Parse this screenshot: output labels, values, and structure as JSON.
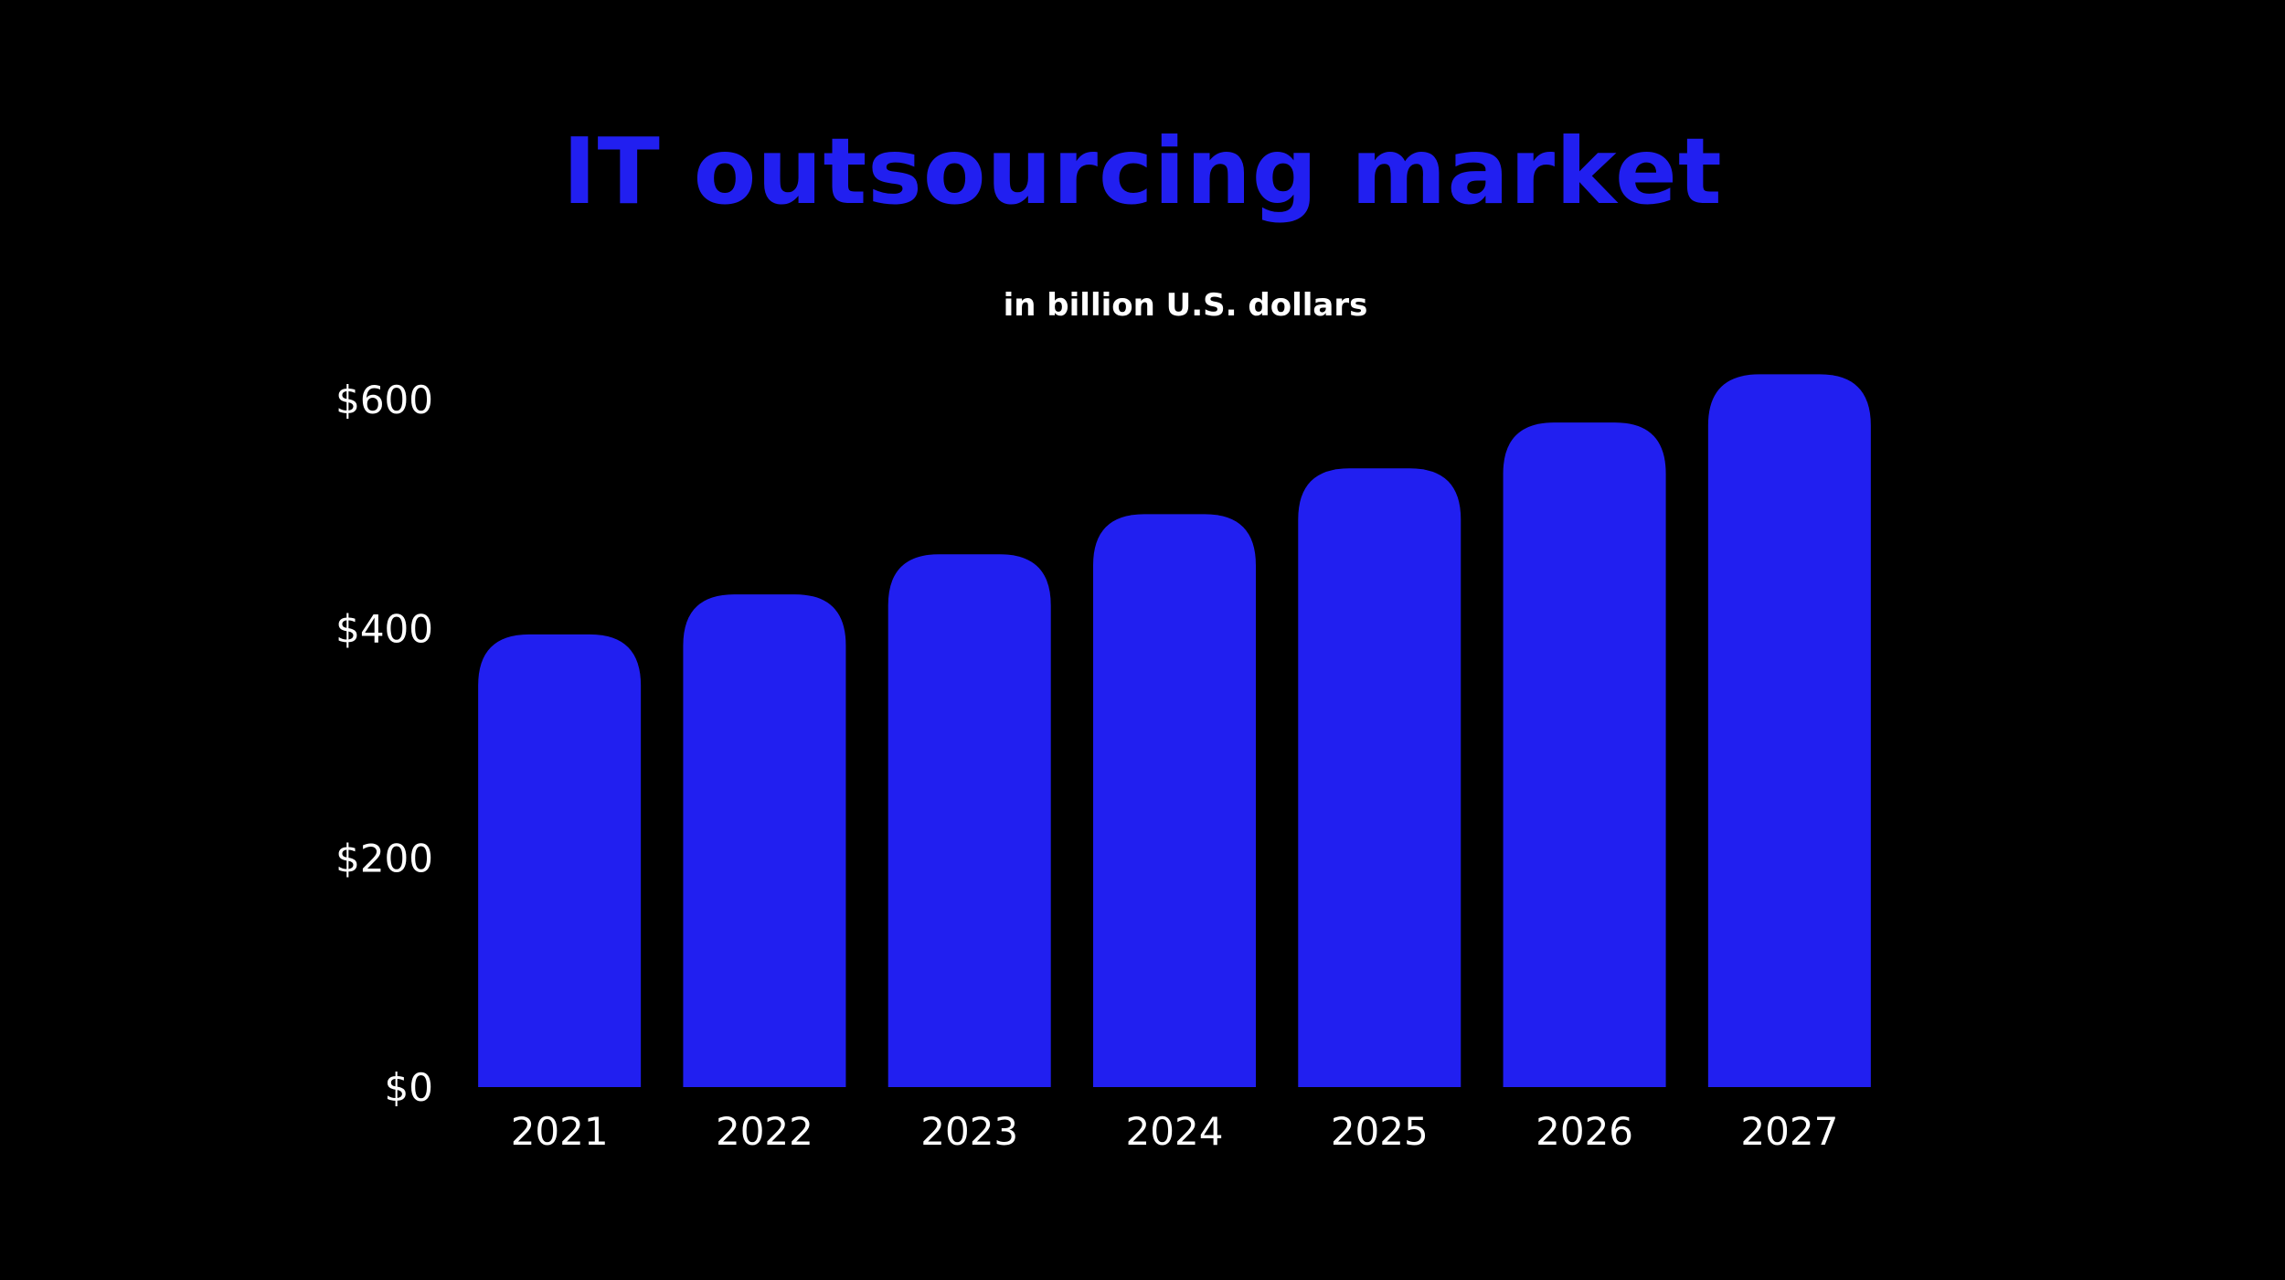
{
  "chart_data": {
    "type": "bar",
    "title": "IT outsourcing market",
    "subtitle": "in billion U.S. dollars",
    "categories": [
      "2021",
      "2022",
      "2023",
      "2024",
      "2025",
      "2026",
      "2027"
    ],
    "values": [
      395,
      430,
      465,
      500,
      540,
      580,
      622
    ],
    "ylim": [
      0,
      600
    ],
    "yticks": [
      0,
      200,
      400,
      600
    ],
    "ytick_labels": [
      "$0",
      "$200",
      "$400",
      "$600"
    ],
    "xlabel": "",
    "ylabel": "",
    "grid": false,
    "legend": "none",
    "colors": {
      "bar": "#211ff0",
      "title": "#211ff0",
      "text": "#ffffff",
      "background": "#000000"
    }
  }
}
